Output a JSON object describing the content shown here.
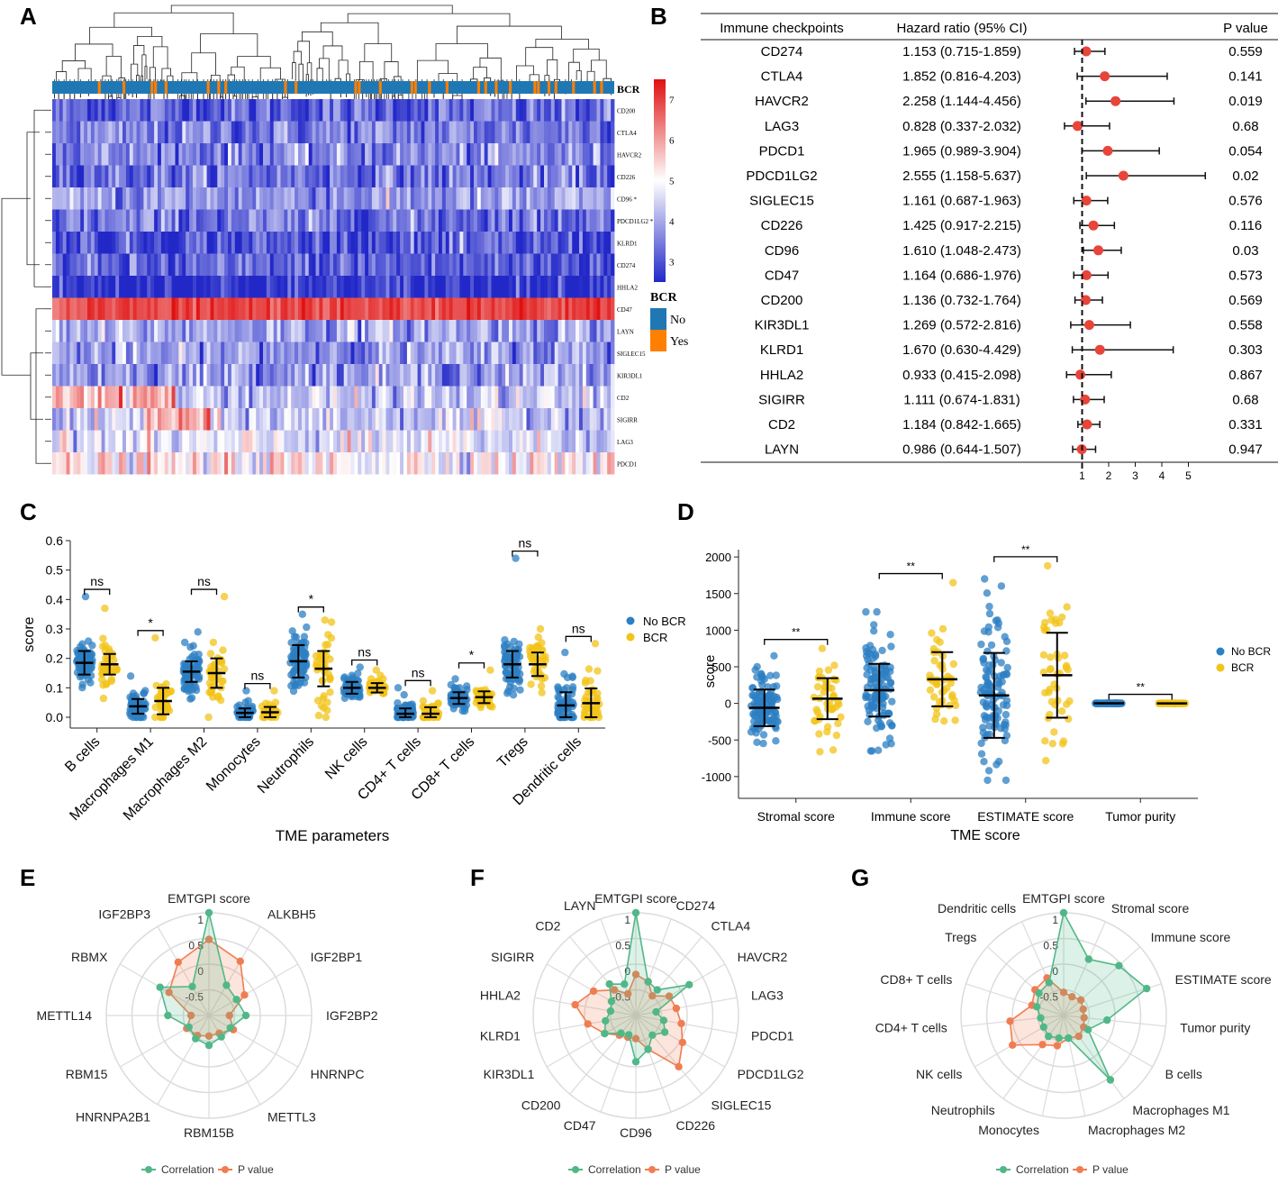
{
  "colors": {
    "blue": "#1f78b4",
    "orange": "#ff7f00",
    "red": "#e8443a",
    "dotBlue": "#2c7fc3",
    "dotYellow": "#f2c318",
    "teal": "#52b788",
    "coral": "#f07d52",
    "heatLow": "#2228c8",
    "heatMid": "#ffffff",
    "heatHigh": "#e01010"
  },
  "panel_labels": [
    "A",
    "B",
    "C",
    "D",
    "E",
    "F",
    "G"
  ],
  "chart_data": [
    {
      "panel": "A",
      "type": "heatmap",
      "rows": [
        "CD200",
        "CTLA4",
        "HAVCR2",
        "CD226",
        "CD96 *",
        "PDCD1LG2 *",
        "KLRD1",
        "CD274",
        "HHLA2",
        "CD47",
        "LAYN",
        "SIGLEC15",
        "KIR3DL1",
        "CD2",
        "SIGIRR",
        "LAG3",
        "PDCD1"
      ],
      "row_means": [
        3.2,
        3.5,
        3.6,
        3.4,
        3.8,
        3.4,
        3.0,
        3.1,
        2.6,
        7.0,
        4.0,
        3.8,
        3.9,
        4.3,
        4.4,
        4.6,
        5.1
      ],
      "columns": 160,
      "annotation_label": "BCR",
      "colorbar": {
        "ticks": [
          "7",
          "6",
          "5",
          "4",
          "3"
        ],
        "min": 2.5,
        "max": 7.5
      },
      "legend": {
        "title": "BCR",
        "items": [
          "No",
          "Yes"
        ]
      }
    },
    {
      "panel": "B",
      "type": "forest",
      "headers": {
        "checkpoint": "Immune checkpoints",
        "hr": "Hazard ratio (95% CI)",
        "p": "P value"
      },
      "rows": [
        {
          "name": "CD274",
          "hr_text": "1.153 (0.715-1.859)",
          "hr": 1.153,
          "lo": 0.715,
          "hi": 1.859,
          "p": "0.559"
        },
        {
          "name": "CTLA4",
          "hr_text": "1.852 (0.816-4.203)",
          "hr": 1.852,
          "lo": 0.816,
          "hi": 4.203,
          "p": "0.141"
        },
        {
          "name": "HAVCR2",
          "hr_text": "2.258 (1.144-4.456)",
          "hr": 2.258,
          "lo": 1.144,
          "hi": 4.456,
          "p": "0.019"
        },
        {
          "name": "LAG3",
          "hr_text": "0.828 (0.337-2.032)",
          "hr": 0.828,
          "lo": 0.337,
          "hi": 2.032,
          "p": "0.68"
        },
        {
          "name": "PDCD1",
          "hr_text": "1.965 (0.989-3.904)",
          "hr": 1.965,
          "lo": 0.989,
          "hi": 3.904,
          "p": "0.054"
        },
        {
          "name": "PDCD1LG2",
          "hr_text": "2.555 (1.158-5.637)",
          "hr": 2.555,
          "lo": 1.158,
          "hi": 5.637,
          "p": "0.02"
        },
        {
          "name": "SIGLEC15",
          "hr_text": "1.161 (0.687-1.963)",
          "hr": 1.161,
          "lo": 0.687,
          "hi": 1.963,
          "p": "0.576"
        },
        {
          "name": "CD226",
          "hr_text": "1.425 (0.917-2.215)",
          "hr": 1.425,
          "lo": 0.917,
          "hi": 2.215,
          "p": "0.116"
        },
        {
          "name": "CD96",
          "hr_text": "1.610 (1.048-2.473)",
          "hr": 1.61,
          "lo": 1.048,
          "hi": 2.473,
          "p": "0.03"
        },
        {
          "name": "CD47",
          "hr_text": "1.164 (0.686-1.976)",
          "hr": 1.164,
          "lo": 0.686,
          "hi": 1.976,
          "p": "0.573"
        },
        {
          "name": "CD200",
          "hr_text": "1.136 (0.732-1.764)",
          "hr": 1.136,
          "lo": 0.732,
          "hi": 1.764,
          "p": "0.569"
        },
        {
          "name": "KIR3DL1",
          "hr_text": "1.269 (0.572-2.816)",
          "hr": 1.269,
          "lo": 0.572,
          "hi": 2.816,
          "p": "0.558"
        },
        {
          "name": "KLRD1",
          "hr_text": "1.670 (0.630-4.429)",
          "hr": 1.67,
          "lo": 0.63,
          "hi": 4.429,
          "p": "0.303"
        },
        {
          "name": "HHLA2",
          "hr_text": "0.933 (0.415-2.098)",
          "hr": 0.933,
          "lo": 0.415,
          "hi": 2.098,
          "p": "0.867"
        },
        {
          "name": "SIGIRR",
          "hr_text": "1.111 (0.674-1.831)",
          "hr": 1.111,
          "lo": 0.674,
          "hi": 1.831,
          "p": "0.68"
        },
        {
          "name": "CD2",
          "hr_text": "1.184 (0.842-1.665)",
          "hr": 1.184,
          "lo": 0.842,
          "hi": 1.665,
          "p": "0.331"
        },
        {
          "name": "LAYN",
          "hr_text": "0.986 (0.644-1.507)",
          "hr": 0.986,
          "lo": 0.644,
          "hi": 1.507,
          "p": "0.947"
        }
      ],
      "xticks": [
        1,
        2,
        3,
        4,
        5
      ],
      "xlim": [
        0,
        5.4
      ]
    },
    {
      "panel": "C",
      "type": "scatter",
      "xlabel": "TME parameters",
      "ylabel": "score",
      "ylim": [
        0,
        0.6
      ],
      "yticks": [
        "0.0",
        "0.1",
        "0.2",
        "0.3",
        "0.4",
        "0.5",
        "0.6"
      ],
      "categories": [
        "B cells",
        "Macrophages M1",
        "Macrophages M2",
        "Monocytes",
        "Neutrophils",
        "NK cells",
        "CD4+ T cells",
        "CD8+ T cells",
        "Tregs",
        "Dendritic cells"
      ],
      "series": [
        {
          "name": "No BCR",
          "mean": [
            0.185,
            0.037,
            0.155,
            0.015,
            0.19,
            0.1,
            0.012,
            0.065,
            0.18,
            0.04
          ],
          "sd": [
            0.04,
            0.025,
            0.035,
            0.015,
            0.055,
            0.02,
            0.018,
            0.02,
            0.045,
            0.045
          ],
          "max": [
            0.41,
            0.14,
            0.29,
            0.09,
            0.35,
            0.17,
            0.1,
            0.13,
            0.54,
            0.22
          ]
        },
        {
          "name": "BCR",
          "mean": [
            0.18,
            0.055,
            0.15,
            0.017,
            0.165,
            0.1,
            0.012,
            0.068,
            0.18,
            0.048
          ],
          "sd": [
            0.035,
            0.045,
            0.05,
            0.018,
            0.06,
            0.016,
            0.022,
            0.02,
            0.04,
            0.05
          ],
          "max": [
            0.37,
            0.27,
            0.41,
            0.09,
            0.33,
            0.16,
            0.09,
            0.16,
            0.3,
            0.25
          ]
        }
      ],
      "significance": [
        "ns",
        "*",
        "ns",
        "ns",
        "*",
        "ns",
        "ns",
        "*",
        "ns",
        "ns"
      ]
    },
    {
      "panel": "D",
      "type": "scatter",
      "xlabel": "TME score",
      "ylabel": "score",
      "ylim": [
        -1100,
        2100
      ],
      "yticks": [
        "2000",
        "1500",
        "1000",
        "500",
        "0",
        "-500",
        "-1000"
      ],
      "categories": [
        "Stromal score",
        "Immune score",
        "ESTIMATE score",
        "Tumor purity"
      ],
      "series": [
        {
          "name": "No BCR",
          "mean": [
            -60,
            180,
            110,
            0.8
          ],
          "sd": [
            250,
            360,
            580,
            0.1
          ],
          "min": [
            -650,
            -650,
            -1050,
            0.6
          ],
          "max": [
            650,
            1250,
            1700,
            1.0
          ]
        },
        {
          "name": "BCR",
          "mean": [
            65,
            330,
            385,
            0.75
          ],
          "sd": [
            280,
            370,
            580,
            0.1
          ],
          "min": [
            -660,
            -360,
            -830,
            0.6
          ],
          "max": [
            750,
            1650,
            1880,
            1.0
          ]
        }
      ],
      "significance": [
        "**",
        "**",
        "**",
        "**"
      ]
    },
    {
      "panel": "E",
      "type": "radar",
      "axes": [
        "EMTGPI score",
        "ALKBH5",
        "IGF2BP1",
        "IGF2BP2",
        "HNRNPC",
        "METTL3",
        "RBM15B",
        "HNRNPA2B1",
        "RBM15",
        "METTL14",
        "RBMX",
        "IGF2BP3"
      ],
      "rticks": [
        "1",
        "0.5",
        "0",
        "-0.5"
      ],
      "rlim": [
        -1,
        1
      ],
      "series": [
        {
          "name": "Correlation",
          "values": [
            1,
            -0.32,
            -0.38,
            -0.28,
            -0.52,
            -0.52,
            -0.42,
            -0.48,
            -0.55,
            -0.2,
            0.1,
            -0.35
          ]
        },
        {
          "name": "P value",
          "values": [
            0.48,
            0.22,
            -0.2,
            -0.6,
            -0.45,
            -0.6,
            -0.6,
            -0.55,
            -0.5,
            -0.65,
            -0.1,
            0.2
          ]
        }
      ]
    },
    {
      "panel": "F",
      "type": "radar",
      "axes": [
        "EMTGPI score",
        "CD274",
        "CTLA4",
        "HAVCR2",
        "LAG3",
        "PDCD1",
        "PDCD1LG2",
        "SIGLEC15",
        "CD226",
        "CD96",
        "CD47",
        "CD200",
        "KIR3DL1",
        "KLRD1",
        "HHLA2",
        "SIGIRR",
        "CD2",
        "LAYN"
      ],
      "rticks": [
        "1",
        "0.5",
        "0",
        "-0.5"
      ],
      "rlim": [
        -1,
        1
      ],
      "series": [
        {
          "name": "Correlation",
          "values": [
            1,
            -0.3,
            -0.35,
            0.2,
            -0.6,
            -0.45,
            -0.35,
            -0.5,
            -0.3,
            -0.1,
            -0.6,
            -0.55,
            -0.3,
            -0.4,
            -0.5,
            -0.45,
            -0.2,
            -0.35
          ]
        },
        {
          "name": "P value",
          "values": [
            -0.2,
            -0.3,
            -0.5,
            -0.25,
            -0.2,
            -0.1,
            0.05,
            0.3,
            -0.3,
            -0.55,
            -0.55,
            -0.5,
            -0.3,
            -0.05,
            0.2,
            -0.05,
            -0.35,
            -0.55
          ]
        }
      ]
    },
    {
      "panel": "G",
      "type": "radar",
      "axes": [
        "EMTGPI score",
        "Stromal score",
        "Immune score",
        "ESTIMATE score",
        "Tumor purity",
        "B cells",
        "Macrophages M1",
        "Macrophages M2",
        "Monocytes",
        "Neutrophils",
        "NK cells",
        "CD4+ T cells",
        "CD8+ T cells",
        "Tregs",
        "Dendritic cells"
      ],
      "rticks": [
        "1",
        "0.5",
        "0",
        "-0.5"
      ],
      "rlim": [
        -1,
        1
      ],
      "series": [
        {
          "name": "Correlation",
          "values": [
            1,
            0.2,
            0.45,
            0.7,
            -0.15,
            -0.45,
            0.55,
            -0.55,
            -0.55,
            -0.5,
            -0.55,
            -0.55,
            -0.45,
            -0.35,
            -0.3
          ]
        },
        {
          "name": "P value",
          "values": [
            -0.55,
            -0.6,
            -0.55,
            -0.6,
            -0.6,
            -0.55,
            -0.5,
            -0.55,
            -0.4,
            -0.3,
            0.15,
            0.05,
            -0.35,
            -0.25,
            -0.2
          ]
        }
      ]
    }
  ]
}
